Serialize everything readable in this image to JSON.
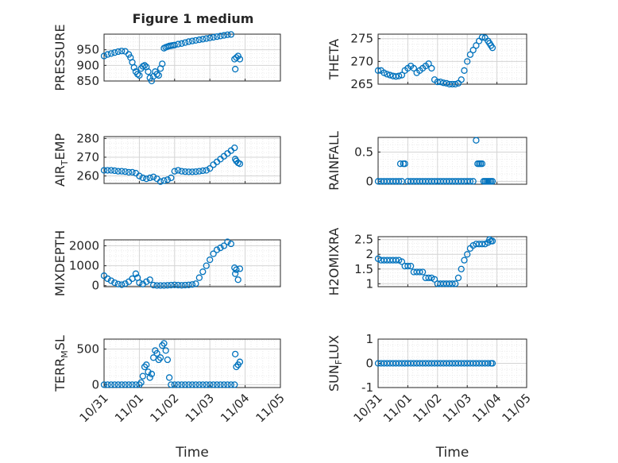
{
  "figure_title": "Figure 1 medium",
  "chart_data": [
    {
      "id": "pressure",
      "type": "scatter",
      "ylabel": "PRESSURE",
      "ylim": [
        850,
        1000
      ],
      "yticks": [
        850,
        900,
        950
      ],
      "xlim": [
        0,
        5
      ],
      "xticks": [
        0,
        1,
        2,
        3,
        4,
        5
      ],
      "xticklabels": [],
      "x": [
        0,
        0.1,
        0.2,
        0.3,
        0.4,
        0.5,
        0.6,
        0.7,
        0.75,
        0.8,
        0.85,
        0.9,
        0.95,
        1.0,
        1.05,
        1.1,
        1.15,
        1.2,
        1.25,
        1.3,
        1.35,
        1.4,
        1.45,
        1.5,
        1.55,
        1.6,
        1.65,
        1.7,
        1.75,
        1.8,
        1.85,
        1.9,
        1.95,
        2.0,
        2.1,
        2.2,
        2.3,
        2.4,
        2.5,
        2.6,
        2.7,
        2.8,
        2.9,
        3.0,
        3.1,
        3.2,
        3.3,
        3.4,
        3.5,
        3.6,
        3.7,
        3.72,
        3.75,
        3.8,
        3.85
      ],
      "y": [
        930,
        935,
        938,
        941,
        944,
        946,
        945,
        935,
        925,
        910,
        893,
        880,
        872,
        868,
        890,
        897,
        900,
        895,
        880,
        860,
        850,
        865,
        880,
        872,
        868,
        890,
        905,
        955,
        958,
        960,
        962,
        963,
        964,
        965,
        968,
        970,
        973,
        976,
        978,
        980,
        982,
        984,
        986,
        988,
        990,
        992,
        994,
        996,
        998,
        999,
        920,
        888,
        925,
        930,
        920
      ]
    },
    {
      "id": "theta",
      "type": "scatter",
      "ylabel": "THETA",
      "ylim": [
        265,
        276
      ],
      "yticks": [
        265,
        270,
        275
      ],
      "xlim": [
        0,
        5
      ],
      "xticks": [
        0,
        1,
        2,
        3,
        4,
        5
      ],
      "xticklabels": [],
      "x": [
        0,
        0.1,
        0.2,
        0.3,
        0.4,
        0.5,
        0.6,
        0.7,
        0.8,
        0.9,
        1.0,
        1.1,
        1.2,
        1.3,
        1.4,
        1.5,
        1.6,
        1.7,
        1.8,
        1.9,
        2.0,
        2.1,
        2.2,
        2.3,
        2.4,
        2.5,
        2.6,
        2.7,
        2.8,
        2.9,
        3.0,
        3.1,
        3.2,
        3.3,
        3.4,
        3.5,
        3.6,
        3.7,
        3.75,
        3.8,
        3.85
      ],
      "y": [
        268,
        268,
        267.5,
        267.2,
        267,
        266.8,
        266.7,
        266.8,
        267,
        268,
        268.5,
        269,
        268.5,
        267.5,
        268,
        268.5,
        269,
        269.5,
        268.5,
        266,
        265.5,
        265.5,
        265.3,
        265.2,
        265,
        265,
        265,
        265.2,
        266,
        268,
        270,
        271.5,
        272.5,
        273.5,
        274.5,
        275.3,
        275.2,
        274.5,
        274,
        273.5,
        273
      ]
    },
    {
      "id": "air_temp",
      "type": "scatter",
      "ylabel": "AIR_TEMP",
      "ylim": [
        256,
        281
      ],
      "yticks": [
        260,
        270,
        280
      ],
      "xlim": [
        0,
        5
      ],
      "xticks": [
        0,
        1,
        2,
        3,
        4,
        5
      ],
      "xticklabels": [],
      "x": [
        0,
        0.1,
        0.2,
        0.3,
        0.4,
        0.5,
        0.6,
        0.7,
        0.8,
        0.9,
        1.0,
        1.1,
        1.2,
        1.3,
        1.4,
        1.5,
        1.6,
        1.7,
        1.8,
        1.9,
        2.0,
        2.1,
        2.2,
        2.3,
        2.4,
        2.5,
        2.6,
        2.7,
        2.8,
        2.9,
        3.0,
        3.1,
        3.2,
        3.3,
        3.4,
        3.5,
        3.6,
        3.7,
        3.72,
        3.75,
        3.8,
        3.85
      ],
      "y": [
        263,
        263,
        263,
        262.8,
        262.5,
        262.5,
        262.3,
        262,
        262,
        261.5,
        260,
        259,
        258.5,
        259,
        259.5,
        258.5,
        257,
        257.5,
        258,
        259,
        262.5,
        263,
        262.5,
        262.3,
        262.2,
        262.2,
        262.3,
        262.5,
        262.8,
        263,
        264,
        266,
        267.5,
        269,
        270.5,
        272,
        273.5,
        275,
        269,
        268,
        267,
        266.5
      ]
    },
    {
      "id": "rainfall",
      "type": "scatter",
      "ylabel": "RAINFALL",
      "ylim": [
        -0.05,
        0.75
      ],
      "yticks": [
        0,
        0.5
      ],
      "xlim": [
        0,
        5
      ],
      "xticks": [
        0,
        1,
        2,
        3,
        4,
        5
      ],
      "xticklabels": [],
      "x": [
        0,
        0.1,
        0.2,
        0.3,
        0.4,
        0.5,
        0.6,
        0.7,
        0.75,
        0.8,
        0.85,
        0.9,
        1.0,
        1.1,
        1.2,
        1.3,
        1.4,
        1.5,
        1.6,
        1.7,
        1.8,
        1.9,
        2.0,
        2.1,
        2.2,
        2.3,
        2.4,
        2.5,
        2.6,
        2.7,
        2.8,
        2.9,
        3.0,
        3.1,
        3.2,
        3.3,
        3.35,
        3.4,
        3.45,
        3.5,
        3.55,
        3.6,
        3.65,
        3.7,
        3.75,
        3.8,
        3.85
      ],
      "y": [
        0,
        0,
        0,
        0,
        0,
        0,
        0,
        0,
        0.3,
        0,
        0.3,
        0.3,
        0,
        0,
        0,
        0,
        0,
        0,
        0,
        0,
        0,
        0,
        0,
        0,
        0,
        0,
        0,
        0,
        0,
        0,
        0,
        0,
        0,
        0,
        0,
        0.7,
        0.3,
        0.3,
        0.3,
        0.3,
        0,
        0,
        0,
        0,
        0,
        0,
        0
      ]
    },
    {
      "id": "mixdepth",
      "type": "scatter",
      "ylabel": "MIXDEPTH",
      "ylim": [
        -50,
        2300
      ],
      "yticks": [
        0,
        1000,
        2000
      ],
      "xlim": [
        0,
        5
      ],
      "xticks": [
        0,
        1,
        2,
        3,
        4,
        5
      ],
      "xticklabels": [],
      "x": [
        0,
        0.1,
        0.2,
        0.3,
        0.4,
        0.5,
        0.6,
        0.7,
        0.8,
        0.9,
        0.95,
        1.0,
        1.1,
        1.2,
        1.3,
        1.4,
        1.5,
        1.6,
        1.7,
        1.8,
        1.9,
        2.0,
        2.1,
        2.2,
        2.3,
        2.4,
        2.5,
        2.6,
        2.7,
        2.8,
        2.9,
        3.0,
        3.1,
        3.2,
        3.3,
        3.4,
        3.5,
        3.6,
        3.7,
        3.72,
        3.75,
        3.8,
        3.85
      ],
      "y": [
        500,
        350,
        250,
        150,
        80,
        50,
        100,
        200,
        350,
        600,
        400,
        150,
        80,
        200,
        300,
        30,
        10,
        10,
        10,
        20,
        30,
        40,
        30,
        20,
        30,
        40,
        60,
        100,
        400,
        700,
        1000,
        1300,
        1600,
        1800,
        1900,
        2000,
        2200,
        2100,
        900,
        600,
        800,
        300,
        850
      ]
    },
    {
      "id": "h2omixra",
      "type": "scatter",
      "ylabel": "H2OMIXRA",
      "ylim": [
        0.9,
        2.6
      ],
      "yticks": [
        1,
        1.5,
        2,
        2.5
      ],
      "xlim": [
        0,
        5
      ],
      "xticks": [
        0,
        1,
        2,
        3,
        4,
        5
      ],
      "xticklabels": [],
      "x": [
        0,
        0.1,
        0.2,
        0.3,
        0.4,
        0.5,
        0.6,
        0.7,
        0.8,
        0.9,
        1.0,
        1.1,
        1.2,
        1.3,
        1.4,
        1.5,
        1.6,
        1.7,
        1.8,
        1.9,
        2.0,
        2.1,
        2.2,
        2.3,
        2.4,
        2.5,
        2.6,
        2.7,
        2.8,
        2.9,
        3.0,
        3.1,
        3.2,
        3.3,
        3.4,
        3.5,
        3.6,
        3.7,
        3.75,
        3.8,
        3.85
      ],
      "y": [
        1.85,
        1.8,
        1.8,
        1.8,
        1.8,
        1.8,
        1.8,
        1.8,
        1.75,
        1.6,
        1.6,
        1.6,
        1.4,
        1.4,
        1.4,
        1.4,
        1.2,
        1.2,
        1.2,
        1.15,
        1.0,
        1.0,
        1.0,
        1.0,
        1.0,
        1.0,
        1.0,
        1.2,
        1.5,
        1.8,
        2.0,
        2.2,
        2.3,
        2.35,
        2.35,
        2.35,
        2.35,
        2.4,
        2.5,
        2.45,
        2.45
      ]
    },
    {
      "id": "terr_msl",
      "type": "scatter",
      "ylabel": "TERR_MSL",
      "ylim": [
        -40,
        640
      ],
      "yticks": [
        0,
        500
      ],
      "xlim": [
        0,
        5
      ],
      "xticks": [
        0,
        1,
        2,
        3,
        4,
        5
      ],
      "xticklabels": [
        "10/31",
        "11/01",
        "11/02",
        "11/03",
        "11/04",
        "11/05"
      ],
      "xlabel": "Time",
      "x": [
        0,
        0.1,
        0.2,
        0.3,
        0.4,
        0.5,
        0.6,
        0.7,
        0.8,
        0.9,
        1.0,
        1.05,
        1.1,
        1.15,
        1.2,
        1.25,
        1.3,
        1.35,
        1.4,
        1.45,
        1.5,
        1.55,
        1.6,
        1.65,
        1.7,
        1.75,
        1.8,
        1.85,
        1.9,
        2.0,
        2.1,
        2.2,
        2.3,
        2.4,
        2.5,
        2.6,
        2.7,
        2.8,
        2.9,
        3.0,
        3.1,
        3.2,
        3.3,
        3.4,
        3.5,
        3.6,
        3.7,
        3.72,
        3.75,
        3.8,
        3.85
      ],
      "y": [
        0,
        0,
        0,
        0,
        0,
        0,
        0,
        0,
        0,
        0,
        0,
        30,
        120,
        250,
        280,
        180,
        100,
        150,
        380,
        480,
        440,
        350,
        380,
        550,
        580,
        480,
        350,
        100,
        0,
        0,
        0,
        0,
        0,
        0,
        0,
        0,
        0,
        0,
        0,
        0,
        0,
        0,
        0,
        0,
        0,
        0,
        0,
        430,
        250,
        280,
        320
      ]
    },
    {
      "id": "sun_flux",
      "type": "scatter",
      "ylabel": "SUN_FLUX",
      "ylim": [
        -1,
        1
      ],
      "yticks": [
        -1,
        0,
        1
      ],
      "xlim": [
        0,
        5
      ],
      "xticks": [
        0,
        1,
        2,
        3,
        4,
        5
      ],
      "xticklabels": [
        "10/31",
        "11/01",
        "11/02",
        "11/03",
        "11/04",
        "11/05"
      ],
      "xlabel": "Time",
      "x": [
        0,
        0.1,
        0.2,
        0.3,
        0.4,
        0.5,
        0.6,
        0.7,
        0.8,
        0.9,
        1.0,
        1.1,
        1.2,
        1.3,
        1.4,
        1.5,
        1.6,
        1.7,
        1.8,
        1.9,
        2.0,
        2.1,
        2.2,
        2.3,
        2.4,
        2.5,
        2.6,
        2.7,
        2.8,
        2.9,
        3.0,
        3.1,
        3.2,
        3.3,
        3.4,
        3.5,
        3.6,
        3.7,
        3.8,
        3.85
      ],
      "y": [
        0,
        0,
        0,
        0,
        0,
        0,
        0,
        0,
        0,
        0,
        0,
        0,
        0,
        0,
        0,
        0,
        0,
        0,
        0,
        0,
        0,
        0,
        0,
        0,
        0,
        0,
        0,
        0,
        0,
        0,
        0,
        0,
        0,
        0,
        0,
        0,
        0,
        0,
        0,
        0
      ]
    }
  ]
}
